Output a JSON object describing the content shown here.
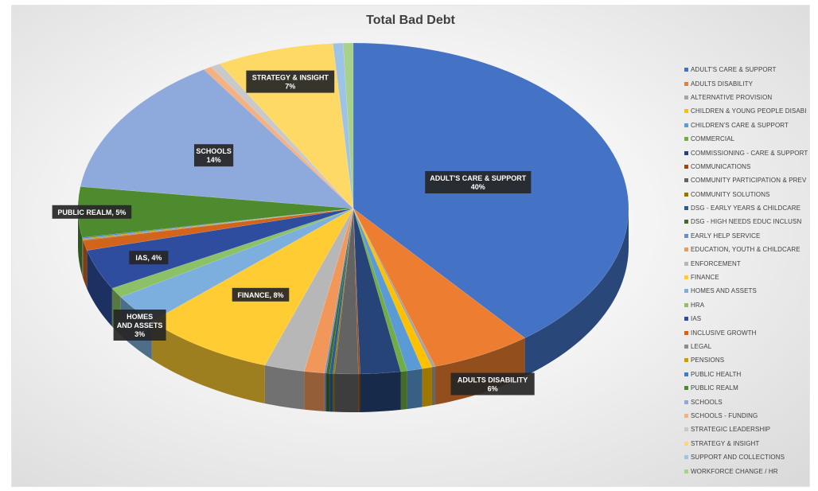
{
  "chart_data": {
    "type": "pie",
    "title": "Total Bad Debt",
    "legend_position": "right",
    "slices": [
      {
        "name": "ADULT'S CARE & SUPPORT",
        "value": 40,
        "color": "#4472C4",
        "label": "ADULT'S CARE & SUPPORT\n40%"
      },
      {
        "name": "ADULTS DISABILITY",
        "value": 6,
        "color": "#ED7D31",
        "label": "ADULTS DISABILITY\n6%"
      },
      {
        "name": "ALTERNATIVE PROVISION",
        "value": 0.2,
        "color": "#A5A5A5",
        "label": ""
      },
      {
        "name": "CHILDREN & YOUNG PEOPLE DISABI",
        "value": 0.6,
        "color": "#FFC000",
        "label": ""
      },
      {
        "name": "CHILDREN'S CARE & SUPPORT",
        "value": 0.9,
        "color": "#5B9BD5",
        "label": ""
      },
      {
        "name": "COMMERCIAL",
        "value": 0.4,
        "color": "#70AD47",
        "label": ""
      },
      {
        "name": "COMMISSIONING - CARE & SUPPORT",
        "value": 2.4,
        "color": "#264478",
        "label": ""
      },
      {
        "name": "COMMUNICATIONS",
        "value": 0.1,
        "color": "#9E480E",
        "label": ""
      },
      {
        "name": "COMMUNITY PARTICIPATION & PREV",
        "value": 1.4,
        "color": "#636363",
        "label": ""
      },
      {
        "name": "COMMUNITY SOLUTIONS",
        "value": 0.1,
        "color": "#997300",
        "label": ""
      },
      {
        "name": "DSG - EARLY YEARS & CHILDCARE",
        "value": 0.2,
        "color": "#255E91",
        "label": ""
      },
      {
        "name": "DSG - HIGH NEEDS EDUC INCLUSN",
        "value": 0.2,
        "color": "#43682B",
        "label": ""
      },
      {
        "name": "EARLY HELP SERVICE",
        "value": 0.1,
        "color": "#698ED0",
        "label": ""
      },
      {
        "name": "EDUCATION, YOUTH & CHILDCARE",
        "value": 1.2,
        "color": "#F1975A",
        "label": ""
      },
      {
        "name": "ENFORCEMENT",
        "value": 2.4,
        "color": "#B7B7B7",
        "label": ""
      },
      {
        "name": "FINANCE",
        "value": 8,
        "color": "#FFCD33",
        "label": "FINANCE, 8%"
      },
      {
        "name": "HOMES AND ASSETS",
        "value": 3,
        "color": "#7CAFDD",
        "label": "HOMES\nAND ASSETS\n3%"
      },
      {
        "name": "HRA",
        "value": 1,
        "color": "#8CC168",
        "label": ""
      },
      {
        "name": "IAS",
        "value": 4,
        "color": "#2E4D9E",
        "label": "IAS, 4%"
      },
      {
        "name": "INCLUSIVE GROWTH",
        "value": 1,
        "color": "#D2641C",
        "label": ""
      },
      {
        "name": "LEGAL",
        "value": 0.1,
        "color": "#8C8C8C",
        "label": ""
      },
      {
        "name": "PENSIONS",
        "value": 0.1,
        "color": "#C9A100",
        "label": ""
      },
      {
        "name": "PUBLIC HEALTH",
        "value": 0.1,
        "color": "#3A7EC6",
        "label": ""
      },
      {
        "name": "PUBLIC REALM",
        "value": 5,
        "color": "#4E8A2E",
        "label": "PUBLIC REALM, 5%"
      },
      {
        "name": "SCHOOLS",
        "value": 14,
        "color": "#8EA9DB",
        "label": "SCHOOLS\n14%"
      },
      {
        "name": "SCHOOLS - FUNDING",
        "value": 0.5,
        "color": "#F4B183",
        "label": ""
      },
      {
        "name": "STRATEGIC LEADERSHIP",
        "value": 0.6,
        "color": "#C9C9C9",
        "label": ""
      },
      {
        "name": "STRATEGY & INSIGHT",
        "value": 7,
        "color": "#FFD966",
        "label": "STRATEGY & INSIGHT\n7%"
      },
      {
        "name": "SUPPORT AND COLLECTIONS",
        "value": 0.6,
        "color": "#9DC3E6",
        "label": ""
      },
      {
        "name": "WORKFORCE CHANGE / HR",
        "value": 0.6,
        "color": "#A9D18E",
        "label": ""
      }
    ]
  }
}
